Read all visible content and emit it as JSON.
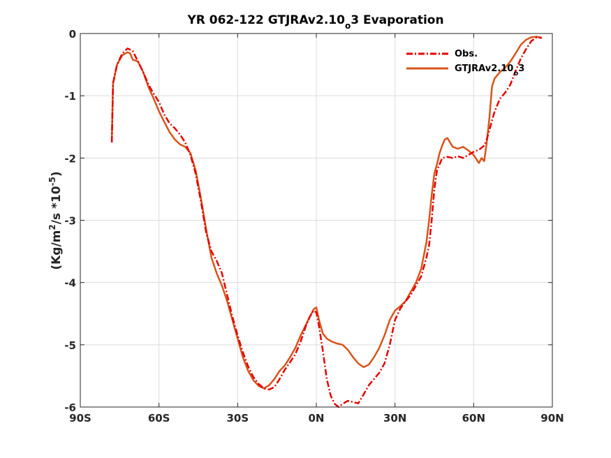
{
  "chart_data": {
    "type": "line",
    "title_main": "YR 062-122 GTJRAv2.10",
    "title_sub": "o",
    "title_tail": "3 Evaporation",
    "ylabel_main": "(Kg/m",
    "ylabel_sup1": "2",
    "ylabel_mid": "/s *10",
    "ylabel_sup2": "-5",
    "ylabel_end": ")",
    "xlabel": "",
    "xlim": [
      -90,
      90
    ],
    "ylim": [
      -6,
      0
    ],
    "x_ticks": [
      {
        "value": -90,
        "label": "90S"
      },
      {
        "value": -60,
        "label": "60S"
      },
      {
        "value": -30,
        "label": "30S"
      },
      {
        "value": 0,
        "label": "0N"
      },
      {
        "value": 30,
        "label": "30N"
      },
      {
        "value": 60,
        "label": "60N"
      },
      {
        "value": 90,
        "label": "90N"
      }
    ],
    "y_ticks": [
      {
        "value": 0,
        "label": "0"
      },
      {
        "value": -1,
        "label": "-1"
      },
      {
        "value": -2,
        "label": "-2"
      },
      {
        "value": -3,
        "label": "-3"
      },
      {
        "value": -4,
        "label": "-4"
      },
      {
        "value": -5,
        "label": "-5"
      },
      {
        "value": -6,
        "label": "-6"
      }
    ],
    "grid": true,
    "legend_position": "top-right",
    "series": [
      {
        "name": "Obs.",
        "color": "#e60000",
        "style": "dash-dot",
        "points": [
          [
            -78,
            -1.75
          ],
          [
            -77.5,
            -0.8
          ],
          [
            -76,
            -0.5
          ],
          [
            -74,
            -0.32
          ],
          [
            -72,
            -0.24
          ],
          [
            -70,
            -0.28
          ],
          [
            -68,
            -0.45
          ],
          [
            -66,
            -0.62
          ],
          [
            -64,
            -0.82
          ],
          [
            -62,
            -0.97
          ],
          [
            -60,
            -1.1
          ],
          [
            -58,
            -1.3
          ],
          [
            -56,
            -1.44
          ],
          [
            -54,
            -1.52
          ],
          [
            -52,
            -1.62
          ],
          [
            -50,
            -1.75
          ],
          [
            -48,
            -1.95
          ],
          [
            -46,
            -2.25
          ],
          [
            -44,
            -2.7
          ],
          [
            -42,
            -3.2
          ],
          [
            -40,
            -3.5
          ],
          [
            -38,
            -3.65
          ],
          [
            -36,
            -3.85
          ],
          [
            -34,
            -4.2
          ],
          [
            -32,
            -4.55
          ],
          [
            -30,
            -4.85
          ],
          [
            -28,
            -5.12
          ],
          [
            -26,
            -5.35
          ],
          [
            -24,
            -5.52
          ],
          [
            -22,
            -5.63
          ],
          [
            -20,
            -5.7
          ],
          [
            -18,
            -5.72
          ],
          [
            -16,
            -5.68
          ],
          [
            -14,
            -5.55
          ],
          [
            -12,
            -5.4
          ],
          [
            -10,
            -5.28
          ],
          [
            -8,
            -5.15
          ],
          [
            -6,
            -4.95
          ],
          [
            -4,
            -4.7
          ],
          [
            -2.5,
            -4.55
          ],
          [
            -1,
            -4.45
          ],
          [
            0,
            -4.48
          ],
          [
            1,
            -4.7
          ],
          [
            2.5,
            -5.1
          ],
          [
            4,
            -5.55
          ],
          [
            5.5,
            -5.82
          ],
          [
            7,
            -5.95
          ],
          [
            8.5,
            -6.0
          ],
          [
            10,
            -5.95
          ],
          [
            12,
            -5.9
          ],
          [
            14,
            -5.92
          ],
          [
            16,
            -5.94
          ],
          [
            18,
            -5.8
          ],
          [
            20,
            -5.65
          ],
          [
            22,
            -5.55
          ],
          [
            24,
            -5.45
          ],
          [
            26,
            -5.3
          ],
          [
            28,
            -5.0
          ],
          [
            30,
            -4.6
          ],
          [
            32,
            -4.42
          ],
          [
            34,
            -4.3
          ],
          [
            36,
            -4.2
          ],
          [
            38,
            -4.05
          ],
          [
            40,
            -3.9
          ],
          [
            42,
            -3.6
          ],
          [
            43,
            -3.4
          ],
          [
            44,
            -3.0
          ],
          [
            45,
            -2.5
          ],
          [
            46,
            -2.2
          ],
          [
            48,
            -2.0
          ],
          [
            50,
            -1.98
          ],
          [
            52,
            -2.0
          ],
          [
            54,
            -1.97
          ],
          [
            56,
            -2.0
          ],
          [
            58,
            -1.95
          ],
          [
            60,
            -1.9
          ],
          [
            62,
            -1.87
          ],
          [
            64,
            -1.8
          ],
          [
            65,
            -1.7
          ],
          [
            66,
            -1.55
          ],
          [
            67,
            -1.4
          ],
          [
            68,
            -1.25
          ],
          [
            70,
            -1.05
          ],
          [
            72,
            -0.95
          ],
          [
            74,
            -0.82
          ],
          [
            76,
            -0.6
          ],
          [
            78,
            -0.4
          ],
          [
            80,
            -0.25
          ],
          [
            82,
            -0.12
          ],
          [
            84,
            -0.06
          ],
          [
            86,
            -0.07
          ]
        ]
      },
      {
        "name": "GTJRAv2.10",
        "name_sub": "o",
        "name_tail": "3",
        "color": "#d95319",
        "style": "solid",
        "points": [
          [
            -78,
            -1.75
          ],
          [
            -77.5,
            -0.8
          ],
          [
            -76,
            -0.5
          ],
          [
            -74,
            -0.35
          ],
          [
            -72,
            -0.3
          ],
          [
            -71,
            -0.32
          ],
          [
            -70,
            -0.42
          ],
          [
            -68,
            -0.45
          ],
          [
            -66,
            -0.62
          ],
          [
            -64,
            -0.86
          ],
          [
            -62,
            -1.05
          ],
          [
            -60,
            -1.25
          ],
          [
            -58,
            -1.42
          ],
          [
            -56,
            -1.58
          ],
          [
            -54,
            -1.7
          ],
          [
            -52,
            -1.78
          ],
          [
            -50,
            -1.82
          ],
          [
            -48,
            -1.92
          ],
          [
            -46,
            -2.2
          ],
          [
            -44,
            -2.65
          ],
          [
            -42,
            -3.15
          ],
          [
            -40,
            -3.6
          ],
          [
            -38,
            -3.85
          ],
          [
            -36,
            -4.05
          ],
          [
            -34,
            -4.3
          ],
          [
            -32,
            -4.6
          ],
          [
            -30,
            -4.9
          ],
          [
            -28,
            -5.2
          ],
          [
            -26,
            -5.42
          ],
          [
            -24,
            -5.57
          ],
          [
            -22,
            -5.66
          ],
          [
            -20,
            -5.7
          ],
          [
            -18,
            -5.65
          ],
          [
            -16,
            -5.55
          ],
          [
            -14,
            -5.42
          ],
          [
            -12,
            -5.33
          ],
          [
            -10,
            -5.2
          ],
          [
            -8,
            -5.05
          ],
          [
            -6,
            -4.85
          ],
          [
            -4,
            -4.68
          ],
          [
            -2.5,
            -4.55
          ],
          [
            -1,
            -4.43
          ],
          [
            0,
            -4.4
          ],
          [
            1,
            -4.6
          ],
          [
            2.5,
            -4.82
          ],
          [
            4,
            -4.9
          ],
          [
            6,
            -4.95
          ],
          [
            8,
            -4.98
          ],
          [
            10,
            -5.0
          ],
          [
            12,
            -5.08
          ],
          [
            14,
            -5.2
          ],
          [
            16,
            -5.3
          ],
          [
            18,
            -5.36
          ],
          [
            20,
            -5.32
          ],
          [
            22,
            -5.2
          ],
          [
            24,
            -5.05
          ],
          [
            26,
            -4.85
          ],
          [
            28,
            -4.6
          ],
          [
            30,
            -4.45
          ],
          [
            32,
            -4.38
          ],
          [
            34,
            -4.3
          ],
          [
            36,
            -4.15
          ],
          [
            38,
            -4.0
          ],
          [
            40,
            -3.78
          ],
          [
            42,
            -3.35
          ],
          [
            43,
            -3.0
          ],
          [
            44,
            -2.6
          ],
          [
            45,
            -2.25
          ],
          [
            46,
            -2.1
          ],
          [
            47,
            -1.92
          ],
          [
            48,
            -1.8
          ],
          [
            49,
            -1.7
          ],
          [
            50,
            -1.68
          ],
          [
            51,
            -1.75
          ],
          [
            52,
            -1.82
          ],
          [
            54,
            -1.85
          ],
          [
            56,
            -1.82
          ],
          [
            58,
            -1.88
          ],
          [
            60,
            -1.95
          ],
          [
            62,
            -2.08
          ],
          [
            63,
            -2.0
          ],
          [
            64,
            -2.05
          ],
          [
            65,
            -1.75
          ],
          [
            66,
            -1.35
          ],
          [
            67,
            -0.85
          ],
          [
            68,
            -0.72
          ],
          [
            70,
            -0.62
          ],
          [
            72,
            -0.55
          ],
          [
            74,
            -0.45
          ],
          [
            76,
            -0.32
          ],
          [
            78,
            -0.18
          ],
          [
            80,
            -0.1
          ],
          [
            82,
            -0.06
          ],
          [
            84,
            -0.05
          ],
          [
            86,
            -0.07
          ]
        ]
      }
    ]
  }
}
